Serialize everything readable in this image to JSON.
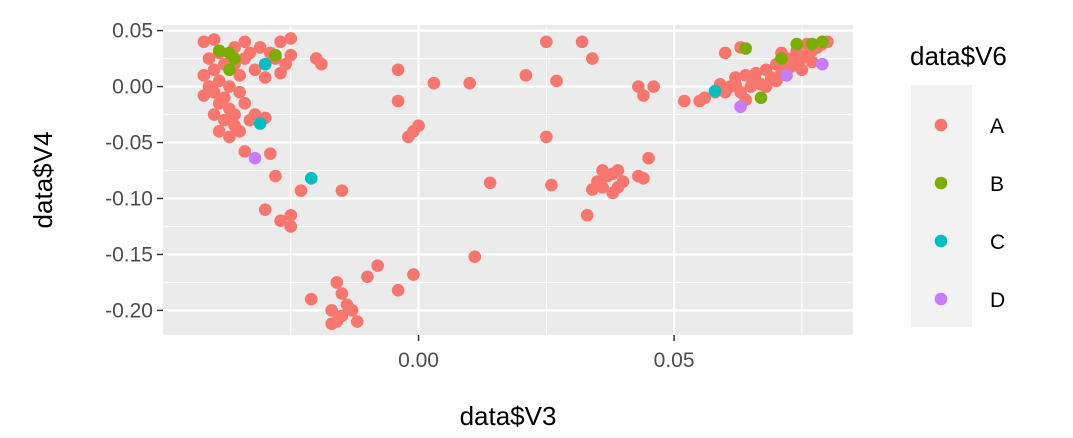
{
  "chart_data": {
    "type": "scatter",
    "xlabel": "data$V3",
    "ylabel": "data$V4",
    "xlim": [
      -0.05,
      0.085
    ],
    "ylim": [
      -0.222,
      0.055
    ],
    "x_ticks": [
      0.0,
      0.05
    ],
    "x_tick_labels": [
      "0.00",
      "0.05"
    ],
    "y_ticks": [
      0.05,
      0.0,
      -0.05,
      -0.1,
      -0.15,
      -0.2
    ],
    "y_tick_labels": [
      "0.05",
      "0.00",
      "-0.05",
      "-0.10",
      "-0.15",
      "-0.20"
    ],
    "grid": true,
    "legend": {
      "title": "data$V6",
      "position": "right",
      "entries": [
        {
          "label": "A",
          "color": "#F8766D"
        },
        {
          "label": "B",
          "color": "#7CAE00"
        },
        {
          "label": "C",
          "color": "#00BFC4"
        },
        {
          "label": "D",
          "color": "#C77CFF"
        }
      ]
    },
    "series": [
      {
        "name": "A",
        "color": "#F8766D",
        "points": [
          [
            -0.042,
            0.04
          ],
          [
            -0.04,
            0.042
          ],
          [
            -0.039,
            0.03
          ],
          [
            -0.041,
            0.025
          ],
          [
            -0.038,
            0.02
          ],
          [
            -0.04,
            0.015
          ],
          [
            -0.042,
            0.01
          ],
          [
            -0.039,
            0.005
          ],
          [
            -0.041,
            0.0
          ],
          [
            -0.04,
            -0.005
          ],
          [
            -0.038,
            -0.01
          ],
          [
            -0.042,
            -0.008
          ],
          [
            -0.039,
            -0.015
          ],
          [
            -0.037,
            -0.02
          ],
          [
            -0.04,
            -0.025
          ],
          [
            -0.038,
            -0.03
          ],
          [
            -0.036,
            -0.035
          ],
          [
            -0.039,
            -0.04
          ],
          [
            -0.037,
            -0.045
          ],
          [
            -0.035,
            -0.04
          ],
          [
            -0.036,
            0.035
          ],
          [
            -0.034,
            0.04
          ],
          [
            -0.033,
            0.03
          ],
          [
            -0.036,
            0.02
          ],
          [
            -0.035,
            0.01
          ],
          [
            -0.037,
            0.0
          ],
          [
            -0.035,
            -0.005
          ],
          [
            -0.034,
            -0.015
          ],
          [
            -0.036,
            -0.025
          ],
          [
            -0.033,
            -0.03
          ],
          [
            -0.034,
            0.025
          ],
          [
            -0.032,
            0.015
          ],
          [
            -0.031,
            0.035
          ],
          [
            -0.029,
            0.03
          ],
          [
            -0.03,
            0.02
          ],
          [
            -0.028,
            0.025
          ],
          [
            -0.027,
            0.012
          ],
          [
            -0.026,
            0.02
          ],
          [
            -0.03,
            0.008
          ],
          [
            -0.027,
            0.04
          ],
          [
            -0.025,
            0.043
          ],
          [
            -0.025,
            0.028
          ],
          [
            -0.03,
            -0.028
          ],
          [
            -0.032,
            -0.025
          ],
          [
            -0.034,
            -0.058
          ],
          [
            -0.029,
            -0.06
          ],
          [
            -0.028,
            -0.08
          ],
          [
            -0.03,
            -0.11
          ],
          [
            -0.027,
            -0.12
          ],
          [
            -0.025,
            -0.115
          ],
          [
            -0.025,
            -0.125
          ],
          [
            -0.023,
            -0.093
          ],
          [
            -0.021,
            -0.19
          ],
          [
            -0.02,
            0.025
          ],
          [
            -0.019,
            0.02
          ],
          [
            -0.017,
            -0.2
          ],
          [
            -0.016,
            -0.175
          ],
          [
            -0.015,
            -0.185
          ],
          [
            -0.014,
            -0.195
          ],
          [
            -0.015,
            -0.205
          ],
          [
            -0.016,
            -0.21
          ],
          [
            -0.017,
            -0.212
          ],
          [
            -0.013,
            -0.2
          ],
          [
            -0.012,
            -0.21
          ],
          [
            -0.015,
            -0.093
          ],
          [
            -0.01,
            -0.17
          ],
          [
            -0.008,
            -0.16
          ],
          [
            -0.004,
            0.015
          ],
          [
            -0.004,
            -0.013
          ],
          [
            -0.004,
            -0.182
          ],
          [
            -0.002,
            -0.045
          ],
          [
            -0.001,
            -0.04
          ],
          [
            0.0,
            -0.035
          ],
          [
            -0.001,
            -0.168
          ],
          [
            0.003,
            0.003
          ],
          [
            0.01,
            0.003
          ],
          [
            0.011,
            -0.152
          ],
          [
            0.014,
            -0.086
          ],
          [
            0.021,
            0.01
          ],
          [
            0.025,
            0.04
          ],
          [
            0.025,
            -0.045
          ],
          [
            0.026,
            -0.088
          ],
          [
            0.027,
            0.005
          ],
          [
            0.032,
            0.04
          ],
          [
            0.034,
            0.025
          ],
          [
            0.033,
            -0.115
          ],
          [
            0.034,
            -0.092
          ],
          [
            0.035,
            -0.085
          ],
          [
            0.036,
            -0.075
          ],
          [
            0.037,
            -0.08
          ],
          [
            0.038,
            -0.078
          ],
          [
            0.039,
            -0.09
          ],
          [
            0.038,
            -0.095
          ],
          [
            0.036,
            -0.09
          ],
          [
            0.039,
            -0.075
          ],
          [
            0.04,
            -0.085
          ],
          [
            0.043,
            -0.08
          ],
          [
            0.044,
            -0.082
          ],
          [
            0.045,
            -0.064
          ],
          [
            0.043,
            0.0
          ],
          [
            0.044,
            -0.008
          ],
          [
            0.046,
            0.0
          ],
          [
            0.052,
            -0.013
          ],
          [
            0.055,
            -0.013
          ],
          [
            0.056,
            -0.01
          ],
          [
            0.058,
            -0.005
          ],
          [
            0.059,
            0.002
          ],
          [
            0.06,
            -0.005
          ],
          [
            0.061,
            0.0
          ],
          [
            0.062,
            0.002
          ],
          [
            0.063,
            -0.005
          ],
          [
            0.064,
            -0.012
          ],
          [
            0.065,
            0.0
          ],
          [
            0.066,
            0.005
          ],
          [
            0.067,
            0.002
          ],
          [
            0.068,
            0.0
          ],
          [
            0.069,
            0.008
          ],
          [
            0.07,
            0.005
          ],
          [
            0.071,
            0.012
          ],
          [
            0.072,
            0.015
          ],
          [
            0.073,
            0.018
          ],
          [
            0.074,
            0.022
          ],
          [
            0.075,
            0.025
          ],
          [
            0.076,
            0.028
          ],
          [
            0.077,
            0.032
          ],
          [
            0.078,
            0.035
          ],
          [
            0.079,
            0.038
          ],
          [
            0.08,
            0.04
          ],
          [
            0.074,
            0.032
          ],
          [
            0.076,
            0.038
          ],
          [
            0.072,
            0.025
          ],
          [
            0.07,
            0.02
          ],
          [
            0.068,
            0.015
          ],
          [
            0.066,
            0.012
          ],
          [
            0.064,
            0.01
          ],
          [
            0.062,
            0.008
          ],
          [
            0.06,
            0.03
          ],
          [
            0.063,
            0.035
          ],
          [
            0.071,
            0.03
          ],
          [
            0.073,
            0.025
          ],
          [
            0.075,
            0.015
          ],
          [
            0.077,
            0.022
          ]
        ]
      },
      {
        "name": "B",
        "color": "#7CAE00",
        "points": [
          [
            -0.039,
            0.032
          ],
          [
            -0.037,
            0.03
          ],
          [
            -0.036,
            0.025
          ],
          [
            -0.037,
            0.015
          ],
          [
            -0.028,
            0.028
          ],
          [
            0.064,
            0.034
          ],
          [
            0.067,
            -0.01
          ],
          [
            0.071,
            0.025
          ],
          [
            0.074,
            0.038
          ],
          [
            0.077,
            0.038
          ],
          [
            0.079,
            0.04
          ]
        ]
      },
      {
        "name": "C",
        "color": "#00BFC4",
        "points": [
          [
            -0.031,
            -0.033
          ],
          [
            -0.03,
            0.02
          ],
          [
            -0.021,
            -0.082
          ],
          [
            0.058,
            -0.004
          ]
        ]
      },
      {
        "name": "D",
        "color": "#C77CFF",
        "points": [
          [
            -0.032,
            -0.064
          ],
          [
            0.063,
            -0.018
          ],
          [
            0.072,
            0.01
          ],
          [
            0.079,
            0.02
          ]
        ]
      }
    ]
  }
}
